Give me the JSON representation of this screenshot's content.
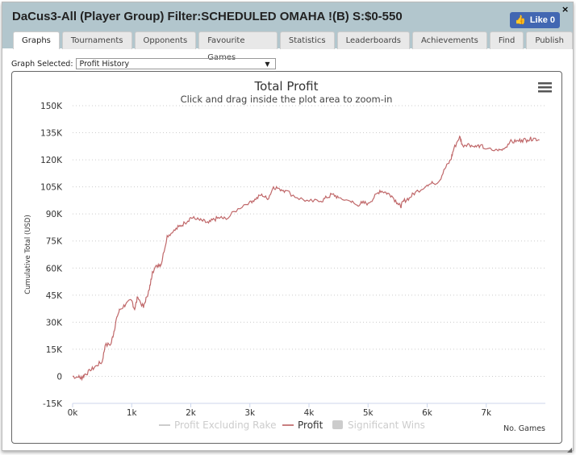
{
  "window": {
    "title": "DaCus3-All (Player Group) Filter:SCHEDULED OMAHA !(B) S:$0-550",
    "like_label": "Like 0",
    "close": "×"
  },
  "tabs": [
    {
      "label": "Graphs",
      "active": true
    },
    {
      "label": "Tournaments"
    },
    {
      "label": "Opponents"
    },
    {
      "label": "Favourite Games"
    },
    {
      "label": "Statistics"
    },
    {
      "label": "Leaderboards"
    },
    {
      "label": "Achievements"
    },
    {
      "label": "Find"
    },
    {
      "label": "Publish"
    }
  ],
  "graph_select": {
    "label": "Graph Selected:",
    "value": "Profit History"
  },
  "chart_data": {
    "type": "line",
    "title": "Total Profit",
    "subtitle": "Click and drag inside the plot area to zoom-in",
    "xlabel": "No. Games",
    "ylabel": "Cumulative Total (USD)",
    "xlim": [
      0,
      8000
    ],
    "ylim": [
      -15000,
      150000
    ],
    "xticks": [
      {
        "v": 0,
        "label": "0k"
      },
      {
        "v": 1000,
        "label": "1k"
      },
      {
        "v": 2000,
        "label": "2k"
      },
      {
        "v": 3000,
        "label": "3k"
      },
      {
        "v": 4000,
        "label": "4k"
      },
      {
        "v": 5000,
        "label": "5k"
      },
      {
        "v": 6000,
        "label": "6k"
      },
      {
        "v": 7000,
        "label": "7k"
      }
    ],
    "yticks": [
      {
        "v": 150000,
        "label": "150K"
      },
      {
        "v": 135000,
        "label": "135K"
      },
      {
        "v": 120000,
        "label": "120K"
      },
      {
        "v": 105000,
        "label": "105K"
      },
      {
        "v": 90000,
        "label": "90K"
      },
      {
        "v": 75000,
        "label": "75K"
      },
      {
        "v": 60000,
        "label": "60K"
      },
      {
        "v": 45000,
        "label": "45K"
      },
      {
        "v": 30000,
        "label": "30K"
      },
      {
        "v": 15000,
        "label": "15K"
      },
      {
        "v": 0,
        "label": "0"
      },
      {
        "v": -15000,
        "label": "-15K"
      }
    ],
    "legend": [
      {
        "name": "Profit Excluding Rake",
        "color": "#cccccc",
        "visible": false
      },
      {
        "name": "Profit",
        "color": "#c87f80",
        "visible": true
      },
      {
        "name": "Significant Wins",
        "color": "#cccccc",
        "visible": false
      }
    ],
    "series": [
      {
        "name": "Profit",
        "color": "#c0686a",
        "points": [
          [
            0,
            0
          ],
          [
            100,
            -500
          ],
          [
            150,
            -1000
          ],
          [
            200,
            1000
          ],
          [
            300,
            3000
          ],
          [
            400,
            6000
          ],
          [
            500,
            8000
          ],
          [
            550,
            17000
          ],
          [
            650,
            18000
          ],
          [
            700,
            25000
          ],
          [
            750,
            33000
          ],
          [
            800,
            37000
          ],
          [
            900,
            40000
          ],
          [
            1000,
            42000
          ],
          [
            1050,
            37000
          ],
          [
            1100,
            44000
          ],
          [
            1200,
            38000
          ],
          [
            1250,
            44000
          ],
          [
            1300,
            48000
          ],
          [
            1350,
            58000
          ],
          [
            1450,
            62000
          ],
          [
            1500,
            62000
          ],
          [
            1600,
            78000
          ],
          [
            1700,
            80000
          ],
          [
            1800,
            83000
          ],
          [
            1900,
            85000
          ],
          [
            2000,
            88000
          ],
          [
            2100,
            87000
          ],
          [
            2200,
            86000
          ],
          [
            2300,
            85000
          ],
          [
            2400,
            87000
          ],
          [
            2500,
            88000
          ],
          [
            2600,
            87000
          ],
          [
            2800,
            93000
          ],
          [
            3000,
            97000
          ],
          [
            3100,
            98000
          ],
          [
            3200,
            101000
          ],
          [
            3300,
            98000
          ],
          [
            3400,
            105000
          ],
          [
            3500,
            104000
          ],
          [
            3600,
            103000
          ],
          [
            3800,
            99000
          ],
          [
            4000,
            97000
          ],
          [
            4200,
            97000
          ],
          [
            4300,
            99000
          ],
          [
            4400,
            101000
          ],
          [
            4500,
            99000
          ],
          [
            4700,
            97000
          ],
          [
            4800,
            95000
          ],
          [
            4900,
            96000
          ],
          [
            5000,
            96000
          ],
          [
            5100,
            99000
          ],
          [
            5200,
            103000
          ],
          [
            5300,
            102000
          ],
          [
            5400,
            100000
          ],
          [
            5500,
            96000
          ],
          [
            5550,
            94000
          ],
          [
            5600,
            97000
          ],
          [
            5700,
            99000
          ],
          [
            5800,
            102000
          ],
          [
            6000,
            106000
          ],
          [
            6100,
            107000
          ],
          [
            6200,
            108000
          ],
          [
            6300,
            115000
          ],
          [
            6400,
            120000
          ],
          [
            6450,
            126000
          ],
          [
            6550,
            133000
          ],
          [
            6600,
            128000
          ],
          [
            6700,
            129000
          ],
          [
            6800,
            127000
          ],
          [
            6900,
            128000
          ],
          [
            7000,
            126000
          ],
          [
            7200,
            125000
          ],
          [
            7300,
            126000
          ],
          [
            7400,
            130000
          ],
          [
            7500,
            130000
          ],
          [
            7600,
            131000
          ],
          [
            7700,
            131000
          ],
          [
            7800,
            132000
          ],
          [
            7900,
            131000
          ]
        ]
      }
    ]
  }
}
